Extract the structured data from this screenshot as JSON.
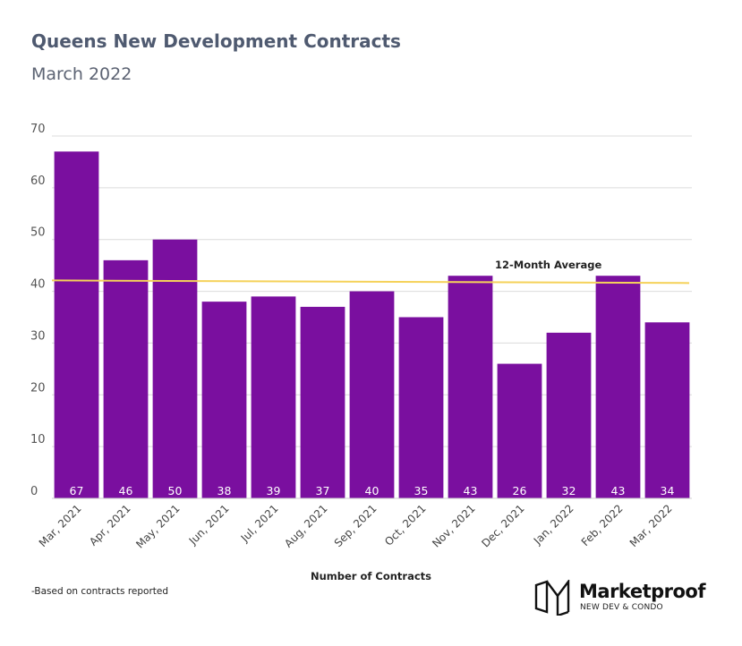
{
  "header": {
    "title": "Queens New Development Contracts",
    "subtitle": "March 2022"
  },
  "chart_data": {
    "type": "bar",
    "categories": [
      "Mar, 2021",
      "Apr, 2021",
      "May, 2021",
      "Jun, 2021",
      "Jul, 2021",
      "Aug, 2021",
      "Sep, 2021",
      "Oct, 2021",
      "Nov, 2021",
      "Dec, 2021",
      "Jan, 2022",
      "Feb, 2022",
      "Mar, 2022"
    ],
    "values": [
      67,
      46,
      50,
      38,
      39,
      37,
      40,
      35,
      43,
      26,
      32,
      43,
      34
    ],
    "xlabel": "Number of Contracts",
    "ylabel": "",
    "ylim": [
      0,
      70
    ],
    "yticks": [
      0,
      10,
      20,
      30,
      40,
      50,
      60,
      70
    ],
    "grid": true,
    "bar_color": "#7a0f9f",
    "average_line": {
      "label": "12-Month Average",
      "start_value": 42.1,
      "end_value": 41.6,
      "color": "#f5d25a"
    }
  },
  "footer": {
    "note": "-Based on contracts reported",
    "brand": {
      "name": "Marketproof",
      "tagline": "NEW DEV & CONDO"
    }
  }
}
